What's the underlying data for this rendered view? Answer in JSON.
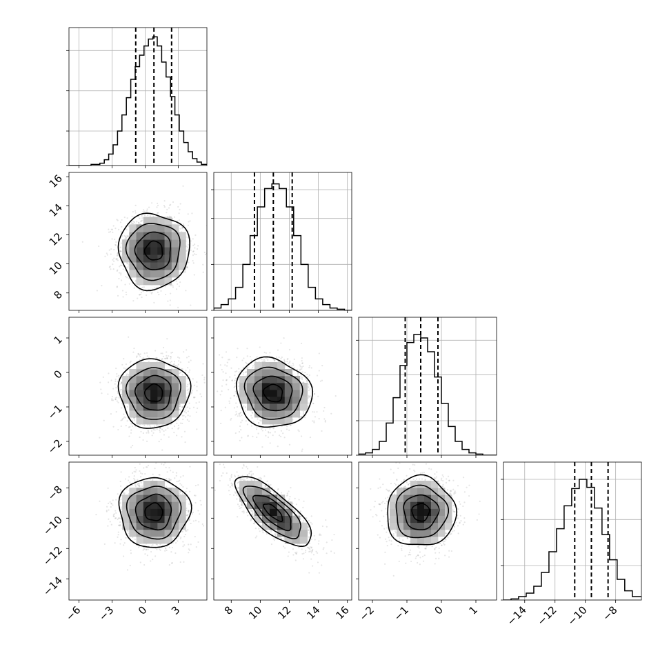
{
  "chart_data": {
    "type": "corner",
    "grid_lines": true,
    "legend": "none",
    "params": [
      {
        "mean": 0.8,
        "sd": 1.6,
        "lim": [
          -6.9,
          5.6
        ],
        "ticks": [
          -6,
          -3,
          0,
          3
        ],
        "tick_labels": [
          "−6",
          "−3",
          "0",
          "3"
        ],
        "quantiles": [
          -0.85,
          0.8,
          2.4
        ],
        "hist_ylim": [
          0,
          1.2
        ],
        "hist_y_ticks": [
          0.0,
          0.3,
          0.65,
          1.0
        ]
      },
      {
        "mean": 10.9,
        "sd": 1.3,
        "lim": [
          6.8,
          16.3
        ],
        "ticks": [
          8,
          10,
          12,
          14,
          16
        ],
        "tick_labels": [
          "8",
          "10",
          "12",
          "14",
          "16"
        ],
        "quantiles": [
          9.6,
          10.9,
          12.2
        ],
        "hist_ylim": [
          0,
          1.2
        ],
        "hist_y_ticks": [
          0.0,
          0.4,
          0.8,
          1.05
        ]
      },
      {
        "mean": -0.6,
        "sd": 0.5,
        "lim": [
          -2.4,
          1.6
        ],
        "ticks": [
          -2,
          -1,
          0,
          1
        ],
        "tick_labels": [
          "−2",
          "−1",
          "0",
          "1"
        ],
        "quantiles": [
          -1.05,
          -0.6,
          -0.1
        ],
        "hist_ylim": [
          0,
          1.2
        ],
        "hist_y_ticks": [
          0.0,
          0.3,
          0.7,
          1.0
        ]
      },
      {
        "mean": -9.6,
        "sd": 1.15,
        "lim": [
          -15.4,
          -6.3
        ],
        "ticks": [
          -14,
          -12,
          -10,
          -8
        ],
        "tick_labels": [
          "−14",
          "−12",
          "−10",
          "−8"
        ],
        "quantiles": [
          -10.7,
          -9.6,
          -8.5
        ],
        "hist_ylim": [
          0,
          1.2
        ],
        "hist_y_ticks": [
          0.0,
          0.3,
          0.7,
          1.05
        ]
      }
    ],
    "correlations": [
      [
        0,
        1,
        0.0
      ],
      [
        0,
        2,
        0.0
      ],
      [
        0,
        3,
        0.0
      ],
      [
        1,
        2,
        -0.1
      ],
      [
        1,
        3,
        -0.75
      ],
      [
        2,
        3,
        0.0
      ]
    ],
    "histograms": [
      {
        "edges": [
          -6.9,
          -6.5,
          -6.1,
          -5.7,
          -5.3,
          -4.9,
          -4.5,
          -4.1,
          -3.7,
          -3.3,
          -2.9,
          -2.5,
          -2.1,
          -1.7,
          -1.3,
          -0.9,
          -0.5,
          -0.1,
          0.3,
          0.7,
          1.1,
          1.5,
          1.9,
          2.3,
          2.7,
          3.1,
          3.5,
          3.9,
          4.3,
          4.7,
          5.1,
          5.6
        ],
        "counts": [
          0,
          0,
          0,
          0,
          0,
          0.01,
          0.01,
          0.02,
          0.05,
          0.1,
          0.18,
          0.3,
          0.44,
          0.59,
          0.75,
          0.86,
          0.96,
          1.04,
          1.1,
          1.12,
          1.04,
          0.9,
          0.77,
          0.6,
          0.44,
          0.3,
          0.2,
          0.12,
          0.06,
          0.03,
          0.01
        ]
      },
      {
        "edges": [
          6.8,
          7.3,
          7.8,
          8.3,
          8.8,
          9.3,
          9.8,
          10.3,
          10.8,
          11.3,
          11.8,
          12.3,
          12.8,
          13.3,
          13.8,
          14.3,
          14.8,
          15.3,
          15.8,
          16.3
        ],
        "counts": [
          0.02,
          0.05,
          0.1,
          0.2,
          0.4,
          0.65,
          0.9,
          1.06,
          1.1,
          1.06,
          0.9,
          0.65,
          0.4,
          0.2,
          0.1,
          0.05,
          0.02,
          0.01,
          0
        ]
      },
      {
        "edges": [
          -2.4,
          -2.2,
          -2.0,
          -1.8,
          -1.6,
          -1.4,
          -1.2,
          -1.0,
          -0.8,
          -0.6,
          -0.4,
          -0.2,
          0.0,
          0.2,
          0.4,
          0.6,
          0.8,
          1.0,
          1.2,
          1.4,
          1.6
        ],
        "counts": [
          0.01,
          0.02,
          0.05,
          0.12,
          0.28,
          0.5,
          0.78,
          0.98,
          1.05,
          1.02,
          0.9,
          0.68,
          0.45,
          0.25,
          0.12,
          0.05,
          0.02,
          0.01,
          0,
          0
        ]
      },
      {
        "edges": [
          -15.4,
          -14.9,
          -14.4,
          -13.9,
          -13.4,
          -12.9,
          -12.4,
          -11.9,
          -11.4,
          -10.9,
          -10.4,
          -9.9,
          -9.4,
          -8.9,
          -8.4,
          -7.9,
          -7.4,
          -6.9,
          -6.3
        ],
        "counts": [
          0,
          0.01,
          0.03,
          0.06,
          0.12,
          0.24,
          0.42,
          0.62,
          0.82,
          0.97,
          1.05,
          0.98,
          0.8,
          0.57,
          0.35,
          0.18,
          0.08,
          0.03
        ]
      }
    ]
  }
}
